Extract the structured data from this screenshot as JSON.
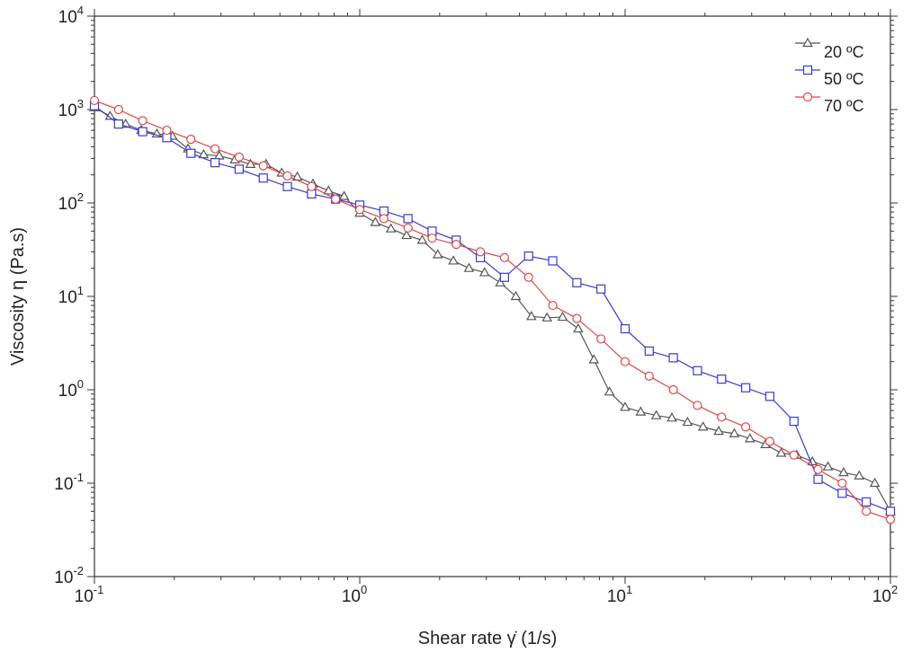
{
  "chart_data": {
    "type": "line",
    "xscale": "log",
    "yscale": "log",
    "xlim": [
      0.1,
      100
    ],
    "ylim": [
      0.01,
      10000
    ],
    "xlabel": "Shear rate γ̇ (1/s)",
    "ylabel": "Viscosity η (Pa.s)",
    "x_ticks": [
      {
        "base": "10",
        "exp": "-1"
      },
      {
        "base": "10",
        "exp": "0"
      },
      {
        "base": "10",
        "exp": "1"
      },
      {
        "base": "10",
        "exp": "2"
      }
    ],
    "y_ticks": [
      {
        "base": "10",
        "exp": "-2"
      },
      {
        "base": "10",
        "exp": "-1"
      },
      {
        "base": "10",
        "exp": "0"
      },
      {
        "base": "10",
        "exp": "1"
      },
      {
        "base": "10",
        "exp": "2"
      },
      {
        "base": "10",
        "exp": "3"
      },
      {
        "base": "10",
        "exp": "4"
      }
    ],
    "legend_position": "top-right",
    "grid": false,
    "series": [
      {
        "name": "20 ºC",
        "color": "#555555",
        "marker": "triangle",
        "x": [
          0.1,
          0.1145,
          0.1311,
          0.1501,
          0.1719,
          0.1968,
          0.2253,
          0.258,
          0.2954,
          0.3383,
          0.3874,
          0.4435,
          0.5079,
          0.5815,
          0.6659,
          0.7625,
          0.8731,
          1.0,
          1.145,
          1.311,
          1.501,
          1.719,
          1.968,
          2.253,
          2.58,
          2.954,
          3.383,
          3.874,
          4.435,
          5.079,
          5.815,
          6.659,
          7.625,
          8.731,
          10.0,
          11.45,
          13.11,
          15.01,
          17.19,
          19.68,
          22.53,
          25.8,
          29.54,
          33.83,
          38.74,
          44.35,
          50.79,
          58.15,
          66.59,
          76.25,
          87.31,
          100.0
        ],
        "y": [
          1050,
          850,
          700,
          600,
          550,
          520,
          380,
          330,
          320,
          290,
          260,
          260,
          210,
          190,
          160,
          135,
          118,
          78,
          62,
          53,
          45,
          40,
          28,
          24,
          20,
          18,
          14,
          10,
          6.1,
          5.9,
          6.0,
          4.5,
          2.1,
          0.95,
          0.65,
          0.58,
          0.53,
          0.5,
          0.45,
          0.4,
          0.36,
          0.34,
          0.3,
          0.26,
          0.21,
          0.2,
          0.17,
          0.15,
          0.13,
          0.12,
          0.1,
          0.05
        ]
      },
      {
        "name": "50 ºC",
        "color": "#3a3ad0",
        "marker": "square",
        "x": [
          0.1,
          0.1233,
          0.152,
          0.1874,
          0.231,
          0.2848,
          0.3511,
          0.4329,
          0.5337,
          0.658,
          0.8111,
          1.0,
          1.233,
          1.52,
          1.874,
          2.31,
          2.848,
          3.511,
          4.329,
          5.337,
          6.58,
          8.111,
          10.0,
          12.33,
          15.2,
          18.74,
          23.1,
          28.48,
          35.11,
          43.29,
          53.37,
          65.8,
          81.11,
          100.0
        ],
        "y": [
          1100,
          700,
          580,
          500,
          340,
          270,
          230,
          185,
          150,
          125,
          110,
          95,
          82,
          68,
          50,
          40,
          26,
          16,
          27,
          24,
          14,
          12,
          4.5,
          2.6,
          2.2,
          1.6,
          1.3,
          1.05,
          0.85,
          0.46,
          0.11,
          0.078,
          0.063,
          0.05
        ]
      },
      {
        "name": "70 ºC",
        "color": "#e04545",
        "marker": "circle",
        "x": [
          0.1,
          0.1233,
          0.152,
          0.1874,
          0.231,
          0.2848,
          0.3511,
          0.4329,
          0.5337,
          0.658,
          0.8111,
          1.0,
          1.233,
          1.52,
          1.874,
          2.31,
          2.848,
          3.511,
          4.329,
          5.337,
          6.58,
          8.111,
          10.0,
          12.33,
          15.2,
          18.74,
          23.1,
          28.48,
          35.11,
          43.29,
          53.37,
          65.8,
          81.11,
          100.0
        ],
        "y": [
          1250,
          1000,
          760,
          600,
          480,
          380,
          310,
          250,
          195,
          150,
          110,
          85,
          68,
          54,
          42,
          36,
          30,
          26,
          16,
          8.0,
          5.8,
          3.5,
          2.0,
          1.4,
          1.0,
          0.68,
          0.51,
          0.4,
          0.28,
          0.2,
          0.14,
          0.1,
          0.05,
          0.041
        ]
      }
    ]
  }
}
